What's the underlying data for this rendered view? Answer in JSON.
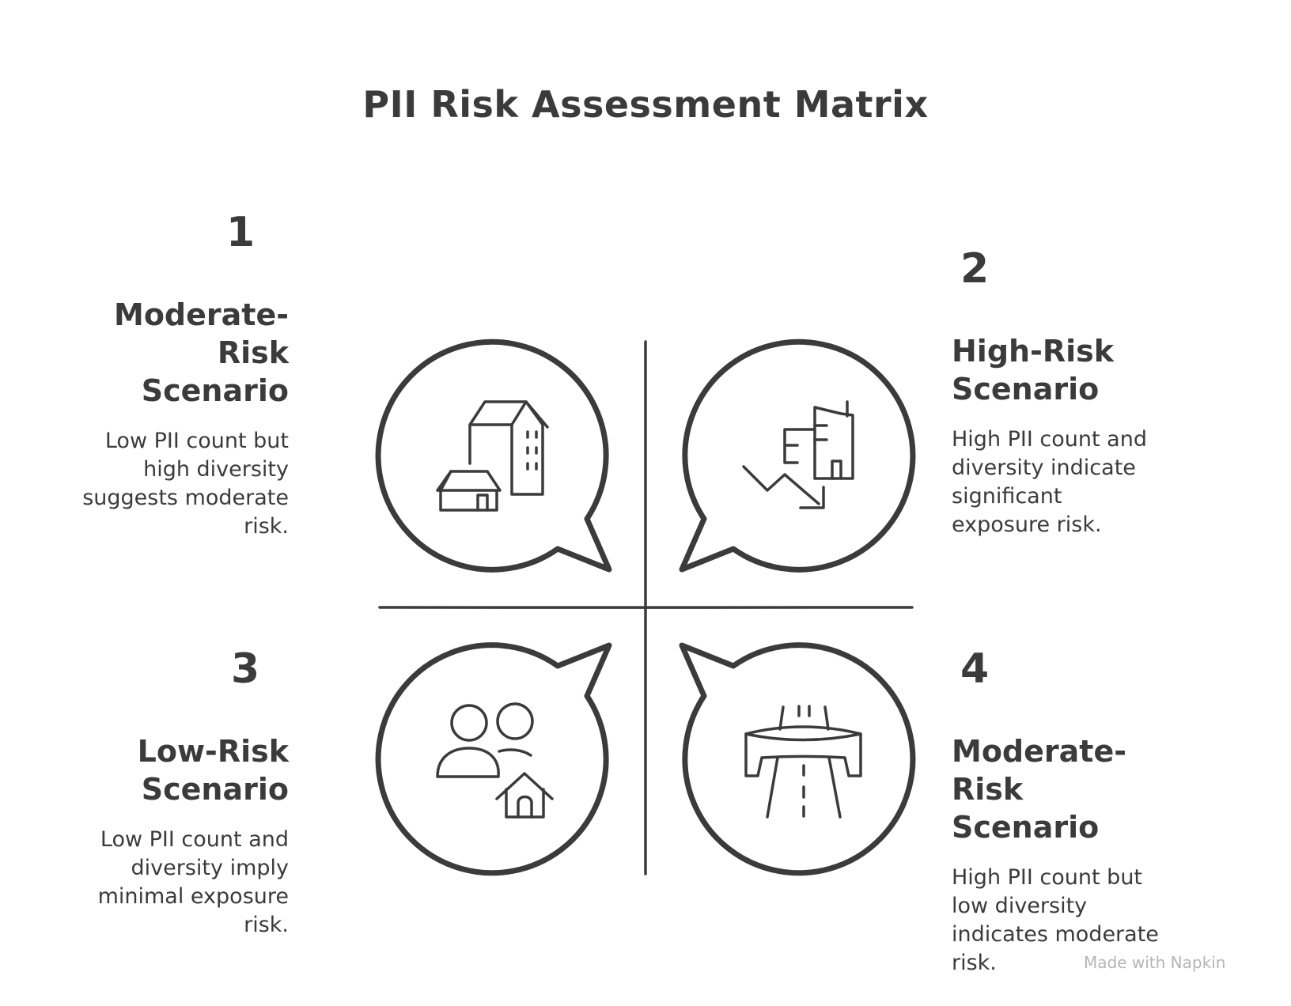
{
  "title": "PII Risk Assessment Matrix",
  "quadrants": [
    {
      "number": "1",
      "heading_lines": [
        "Moderate-",
        "Risk",
        "Scenario"
      ],
      "description_lines": [
        "Low PII count but",
        "high diversity",
        "suggests moderate",
        "risk."
      ],
      "icon": "city-buildings-icon"
    },
    {
      "number": "2",
      "heading_lines": [
        "High-Risk",
        "Scenario"
      ],
      "description_lines": [
        "High PII count and",
        "diversity indicate",
        "significant",
        "exposure risk."
      ],
      "icon": "declining-building-icon"
    },
    {
      "number": "3",
      "heading_lines": [
        "Low-Risk",
        "Scenario"
      ],
      "description_lines": [
        "Low PII count and",
        "diversity imply",
        "minimal exposure",
        "risk."
      ],
      "icon": "people-home-icon"
    },
    {
      "number": "4",
      "heading_lines": [
        "Moderate-",
        "Risk",
        "Scenario"
      ],
      "description_lines": [
        "High PII count but",
        "low diversity",
        "indicates moderate",
        "risk."
      ],
      "icon": "highway-bridge-icon"
    }
  ],
  "watermark": "Made with Napkin",
  "colors": {
    "stroke": "#3b3b3b",
    "background": "#ffffff",
    "watermark": "#b5b5b5"
  }
}
